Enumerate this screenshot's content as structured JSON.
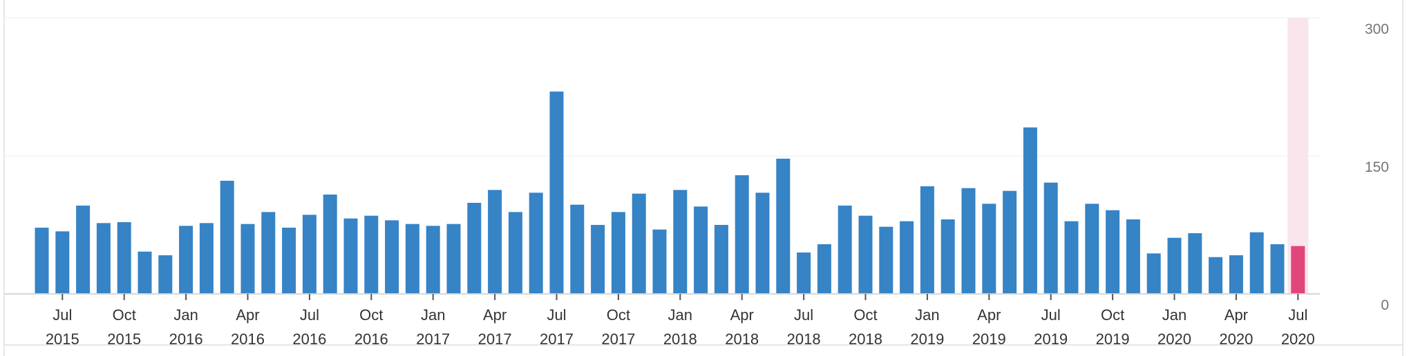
{
  "chart_data": {
    "type": "bar",
    "categories": [
      "Jun 2015",
      "Jul 2015",
      "Aug 2015",
      "Sep 2015",
      "Oct 2015",
      "Nov 2015",
      "Dec 2015",
      "Jan 2016",
      "Feb 2016",
      "Mar 2016",
      "Apr 2016",
      "May 2016",
      "Jun 2016",
      "Jul 2016",
      "Aug 2016",
      "Sep 2016",
      "Oct 2016",
      "Nov 2016",
      "Dec 2016",
      "Jan 2017",
      "Feb 2017",
      "Mar 2017",
      "Apr 2017",
      "May 2017",
      "Jun 2017",
      "Jul 2017",
      "Aug 2017",
      "Sep 2017",
      "Oct 2017",
      "Nov 2017",
      "Dec 2017",
      "Jan 2018",
      "Feb 2018",
      "Mar 2018",
      "Apr 2018",
      "May 2018",
      "Jun 2018",
      "Jul 2018",
      "Aug 2018",
      "Sep 2018",
      "Oct 2018",
      "Nov 2018",
      "Dec 2018",
      "Jan 2019",
      "Feb 2019",
      "Mar 2019",
      "Apr 2019",
      "May 2019",
      "Jun 2019",
      "Jul 2019",
      "Aug 2019",
      "Sep 2019",
      "Oct 2019",
      "Nov 2019",
      "Dec 2019",
      "Jan 2020",
      "Feb 2020",
      "Mar 2020",
      "Apr 2020",
      "May 2020",
      "Jun 2020",
      "Jul 2020"
    ],
    "values": [
      72,
      68,
      96,
      77,
      78,
      46,
      42,
      74,
      77,
      123,
      76,
      89,
      72,
      86,
      108,
      82,
      85,
      80,
      76,
      74,
      76,
      99,
      113,
      89,
      110,
      220,
      97,
      75,
      89,
      109,
      70,
      113,
      95,
      75,
      129,
      110,
      147,
      45,
      54,
      96,
      85,
      73,
      79,
      117,
      81,
      115,
      98,
      112,
      181,
      121,
      79,
      98,
      91,
      81,
      44,
      61,
      66,
      40,
      42,
      67,
      54,
      52
    ],
    "highlight_index": 61,
    "ylim": [
      0,
      300
    ],
    "yticks": [
      "0",
      "150",
      "300"
    ],
    "xticks": [
      {
        "month": "Jul",
        "year": "2015",
        "index": 1
      },
      {
        "month": "Oct",
        "year": "2015",
        "index": 4
      },
      {
        "month": "Jan",
        "year": "2016",
        "index": 7
      },
      {
        "month": "Apr",
        "year": "2016",
        "index": 10
      },
      {
        "month": "Jul",
        "year": "2016",
        "index": 13
      },
      {
        "month": "Oct",
        "year": "2016",
        "index": 16
      },
      {
        "month": "Jan",
        "year": "2017",
        "index": 19
      },
      {
        "month": "Apr",
        "year": "2017",
        "index": 22
      },
      {
        "month": "Jul",
        "year": "2017",
        "index": 25
      },
      {
        "month": "Oct",
        "year": "2017",
        "index": 28
      },
      {
        "month": "Jan",
        "year": "2018",
        "index": 31
      },
      {
        "month": "Apr",
        "year": "2018",
        "index": 34
      },
      {
        "month": "Jul",
        "year": "2018",
        "index": 37
      },
      {
        "month": "Oct",
        "year": "2018",
        "index": 40
      },
      {
        "month": "Jan",
        "year": "2019",
        "index": 43
      },
      {
        "month": "Apr",
        "year": "2019",
        "index": 46
      },
      {
        "month": "Jul",
        "year": "2019",
        "index": 49
      },
      {
        "month": "Oct",
        "year": "2019",
        "index": 52
      },
      {
        "month": "Jan",
        "year": "2020",
        "index": 55
      },
      {
        "month": "Apr",
        "year": "2020",
        "index": 58
      },
      {
        "month": "Jul",
        "year": "2020",
        "index": 61
      }
    ],
    "grid": true,
    "colors": {
      "bar": "#3683c6",
      "highlight_bar": "#e0457b",
      "highlight_band": "#f9e5eb",
      "grid": "#ececec",
      "axis": "#d6d6d6"
    }
  }
}
